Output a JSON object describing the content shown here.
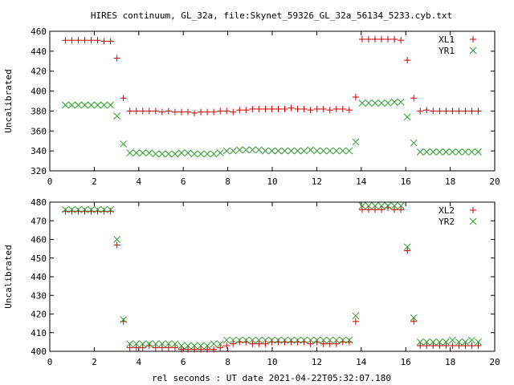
{
  "title": "HIRES continuum, GL_32a, file:Skynet_59326_GL_32a_56134_5233.cyb.txt",
  "xlabel": "rel seconds : UT date 2021-04-22T05:32:07.180",
  "colors": {
    "series_a": "#cc0000",
    "series_b": "#2ca02c",
    "axes": "#000000"
  },
  "chart_data": [
    {
      "type": "scatter",
      "ylabel": "Uncalibrated",
      "xlim": [
        0,
        20
      ],
      "ylim": [
        320,
        460
      ],
      "xticks": [
        0,
        2,
        4,
        6,
        8,
        10,
        12,
        14,
        16,
        18,
        20
      ],
      "yticks": [
        320,
        340,
        360,
        380,
        400,
        420,
        440,
        460
      ],
      "legend": "top-right",
      "series": [
        {
          "name": "XL1",
          "marker": "plus",
          "color": "#cc0000",
          "x": [
            0.7,
            0.99,
            1.28,
            1.57,
            1.86,
            2.15,
            2.44,
            2.73,
            3.02,
            3.31,
            3.6,
            3.89,
            4.18,
            4.47,
            4.76,
            5.05,
            5.34,
            5.63,
            5.92,
            6.21,
            6.5,
            6.79,
            7.08,
            7.37,
            7.66,
            7.95,
            8.24,
            8.53,
            8.82,
            9.11,
            9.4,
            9.69,
            9.98,
            10.27,
            10.56,
            10.85,
            11.14,
            11.43,
            11.72,
            12.01,
            12.3,
            12.59,
            12.88,
            13.17,
            13.46,
            13.75,
            14.04,
            14.33,
            14.62,
            14.91,
            15.2,
            15.49,
            15.78,
            16.07,
            16.36,
            16.65,
            16.94,
            17.23,
            17.52,
            17.81,
            18.1,
            18.39,
            18.68,
            18.97,
            19.26
          ],
          "y": [
            451,
            451,
            451,
            451,
            451,
            451,
            450,
            450,
            433,
            393,
            380,
            380,
            380,
            380,
            380,
            379,
            380,
            379,
            379,
            379,
            378,
            379,
            379,
            379,
            380,
            380,
            379,
            381,
            381,
            382,
            382,
            382,
            382,
            382,
            382,
            383,
            382,
            382,
            381,
            382,
            382,
            381,
            382,
            382,
            381,
            394,
            452,
            452,
            452,
            452,
            452,
            452,
            451,
            431,
            393,
            380,
            381,
            380,
            380,
            380,
            380,
            380,
            380,
            380,
            380
          ]
        },
        {
          "name": "YR1",
          "marker": "cross",
          "color": "#2ca02c",
          "x": [
            0.7,
            0.99,
            1.28,
            1.57,
            1.86,
            2.15,
            2.44,
            2.73,
            3.02,
            3.31,
            3.6,
            3.89,
            4.18,
            4.47,
            4.76,
            5.05,
            5.34,
            5.63,
            5.92,
            6.21,
            6.5,
            6.79,
            7.08,
            7.37,
            7.66,
            7.95,
            8.24,
            8.53,
            8.82,
            9.11,
            9.4,
            9.69,
            9.98,
            10.27,
            10.56,
            10.85,
            11.14,
            11.43,
            11.72,
            12.01,
            12.3,
            12.59,
            12.88,
            13.17,
            13.46,
            13.75,
            14.04,
            14.33,
            14.62,
            14.91,
            15.2,
            15.49,
            15.78,
            16.07,
            16.36,
            16.65,
            16.94,
            17.23,
            17.52,
            17.81,
            18.1,
            18.39,
            18.68,
            18.97,
            19.26
          ],
          "y": [
            386,
            386,
            386,
            386,
            386,
            386,
            386,
            386,
            375,
            347,
            338,
            338,
            338,
            338,
            337,
            337,
            337,
            337,
            338,
            338,
            337,
            337,
            337,
            337,
            338,
            340,
            340,
            341,
            341,
            341,
            341,
            340,
            340,
            340,
            340,
            340,
            340,
            340,
            341,
            340,
            340,
            340,
            340,
            340,
            340,
            349,
            388,
            388,
            388,
            388,
            388,
            389,
            389,
            374,
            348,
            339,
            339,
            339,
            339,
            339,
            339,
            339,
            339,
            339,
            339
          ]
        }
      ]
    },
    {
      "type": "scatter",
      "ylabel": "Uncalibrated",
      "xlim": [
        0,
        20
      ],
      "ylim": [
        400,
        480
      ],
      "xticks": [
        0,
        2,
        4,
        6,
        8,
        10,
        12,
        14,
        16,
        18,
        20
      ],
      "yticks": [
        400,
        410,
        420,
        430,
        440,
        450,
        460,
        470,
        480
      ],
      "legend": "top-right",
      "series": [
        {
          "name": "XL2",
          "marker": "plus",
          "color": "#cc0000",
          "x": [
            0.7,
            0.99,
            1.28,
            1.57,
            1.86,
            2.15,
            2.44,
            2.73,
            3.02,
            3.31,
            3.6,
            3.89,
            4.18,
            4.47,
            4.76,
            5.05,
            5.34,
            5.63,
            5.92,
            6.21,
            6.5,
            6.79,
            7.08,
            7.37,
            7.66,
            7.95,
            8.24,
            8.53,
            8.82,
            9.11,
            9.4,
            9.69,
            9.98,
            10.27,
            10.56,
            10.85,
            11.14,
            11.43,
            11.72,
            12.01,
            12.3,
            12.59,
            12.88,
            13.17,
            13.46,
            13.75,
            14.04,
            14.33,
            14.62,
            14.91,
            15.2,
            15.49,
            15.78,
            16.07,
            16.36,
            16.65,
            16.94,
            17.23,
            17.52,
            17.81,
            18.1,
            18.39,
            18.68,
            18.97,
            19.26
          ],
          "y": [
            475,
            475,
            475,
            475,
            475,
            475,
            475,
            475,
            457,
            416,
            402,
            402,
            402,
            403,
            402,
            402,
            402,
            402,
            401,
            401,
            401,
            401,
            401,
            401,
            402,
            403,
            404,
            405,
            405,
            404,
            404,
            404,
            405,
            405,
            405,
            405,
            405,
            405,
            404,
            405,
            404,
            404,
            404,
            405,
            405,
            416,
            476,
            476,
            476,
            476,
            477,
            476,
            476,
            454,
            416,
            403,
            403,
            403,
            403,
            403,
            403,
            403,
            403,
            403,
            403
          ]
        },
        {
          "name": "YR2",
          "marker": "cross",
          "color": "#2ca02c",
          "x": [
            0.7,
            0.99,
            1.28,
            1.57,
            1.86,
            2.15,
            2.44,
            2.73,
            3.02,
            3.31,
            3.6,
            3.89,
            4.18,
            4.47,
            4.76,
            5.05,
            5.34,
            5.63,
            5.92,
            6.21,
            6.5,
            6.79,
            7.08,
            7.37,
            7.66,
            7.95,
            8.24,
            8.53,
            8.82,
            9.11,
            9.4,
            9.69,
            9.98,
            10.27,
            10.56,
            10.85,
            11.14,
            11.43,
            11.72,
            12.01,
            12.3,
            12.59,
            12.88,
            13.17,
            13.46,
            13.75,
            14.04,
            14.33,
            14.62,
            14.91,
            15.2,
            15.49,
            15.78,
            16.07,
            16.36,
            16.65,
            16.94,
            17.23,
            17.52,
            17.81,
            18.1,
            18.39,
            18.68,
            18.97,
            19.26
          ],
          "y": [
            476,
            476,
            476,
            476,
            476,
            476,
            476,
            476,
            460,
            417,
            404,
            404,
            404,
            404,
            404,
            404,
            404,
            404,
            403,
            403,
            403,
            403,
            403,
            404,
            404,
            406,
            406,
            406,
            406,
            406,
            406,
            406,
            406,
            406,
            406,
            406,
            406,
            406,
            406,
            406,
            406,
            406,
            406,
            406,
            406,
            419,
            478,
            478,
            478,
            478,
            478,
            478,
            478,
            456,
            418,
            405,
            405,
            405,
            405,
            405,
            406,
            405,
            405,
            406,
            405
          ]
        }
      ]
    }
  ]
}
